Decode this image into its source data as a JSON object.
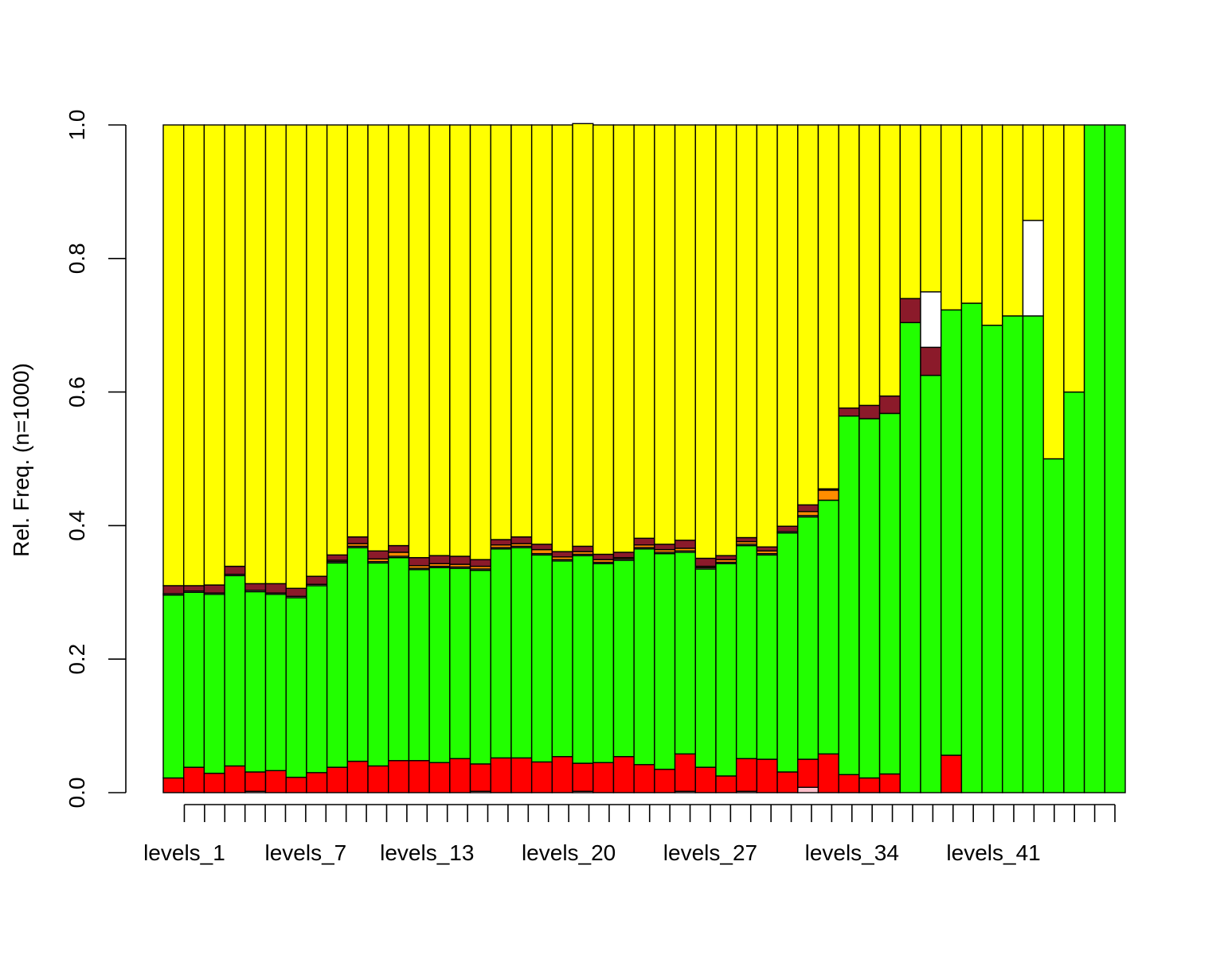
{
  "chart_data": {
    "type": "bar",
    "stacked": true,
    "title": "",
    "xlabel": "",
    "ylabel": "Rel. Freq. (n=1000)",
    "ylim": [
      0,
      1
    ],
    "yticks": [
      "0.0",
      "0.2",
      "0.4",
      "0.6",
      "0.8",
      "1.0"
    ],
    "xtick_labels_shown": [
      "levels_1",
      "levels_7",
      "levels_13",
      "levels_20",
      "levels_27",
      "levels_34",
      "levels_41"
    ],
    "xtick_label_positions": [
      1,
      7,
      13,
      20,
      27,
      34,
      41
    ],
    "categories": [
      "levels_1",
      "levels_2",
      "levels_3",
      "levels_4",
      "levels_5",
      "levels_6",
      "levels_7",
      "levels_8",
      "levels_9",
      "levels_10",
      "levels_11",
      "levels_12",
      "levels_13",
      "levels_14",
      "levels_15",
      "levels_16",
      "levels_17",
      "levels_18",
      "levels_19",
      "levels_20",
      "levels_21",
      "levels_22",
      "levels_23",
      "levels_24",
      "levels_25",
      "levels_26",
      "levels_27",
      "levels_28",
      "levels_29",
      "levels_30",
      "levels_31",
      "levels_32",
      "levels_33",
      "levels_34",
      "levels_35",
      "levels_36",
      "levels_37",
      "levels_38",
      "levels_39",
      "levels_40",
      "levels_41",
      "levels_42",
      "levels_43",
      "levels_44",
      "levels_45",
      "levels_46",
      "levels_47"
    ],
    "series": [
      {
        "color": "#ffc0cb",
        "values": [
          0,
          0,
          0,
          0,
          0.002,
          0,
          0,
          0,
          0,
          0,
          0,
          0,
          0,
          0,
          0,
          0.002,
          0,
          0,
          0,
          0,
          0.002,
          0,
          0,
          0,
          0,
          0.002,
          0,
          0,
          0.002,
          0,
          0,
          0.008,
          0,
          0,
          0,
          0,
          0,
          0,
          0,
          0,
          0,
          0,
          0,
          0,
          0,
          0,
          0
        ]
      },
      {
        "color": "#ff0000",
        "values": [
          0.022,
          0.038,
          0.029,
          0.04,
          0.029,
          0.033,
          0.023,
          0.03,
          0.038,
          0.047,
          0.04,
          0.048,
          0.048,
          0.045,
          0.051,
          0.041,
          0.052,
          0.052,
          0.046,
          0.054,
          0.042,
          0.045,
          0.054,
          0.042,
          0.035,
          0.056,
          0.038,
          0.025,
          0.049,
          0.05,
          0.031,
          0.042,
          0.058,
          0.027,
          0.022,
          0.028,
          0,
          0,
          0.056,
          0,
          0,
          0,
          0,
          0,
          0,
          0,
          0
        ]
      },
      {
        "color": "#22ff00",
        "values": [
          0.274,
          0.262,
          0.268,
          0.285,
          0.27,
          0.264,
          0.269,
          0.28,
          0.306,
          0.32,
          0.304,
          0.304,
          0.286,
          0.292,
          0.285,
          0.29,
          0.313,
          0.315,
          0.31,
          0.293,
          0.311,
          0.298,
          0.294,
          0.323,
          0.323,
          0.302,
          0.297,
          0.318,
          0.319,
          0.306,
          0.358,
          0.363,
          0.38,
          0.537,
          0.538,
          0.54,
          0.704,
          0.625,
          0.667,
          0.733,
          0.7,
          0.714,
          0.714,
          0.5,
          0.6,
          1,
          1
        ]
      },
      {
        "color": "#f0f0b0",
        "values": [
          0.002,
          0.002,
          0.002,
          0.002,
          0.002,
          0.002,
          0.002,
          0.002,
          0.002,
          0.002,
          0.002,
          0.002,
          0.002,
          0.002,
          0.002,
          0.002,
          0.002,
          0.002,
          0.002,
          0.002,
          0.002,
          0.002,
          0.002,
          0.002,
          0.002,
          0.002,
          0.002,
          0.002,
          0.002,
          0.002,
          0.002,
          0.002,
          0,
          0,
          0,
          0,
          0,
          0,
          0,
          0,
          0,
          0,
          0,
          0,
          0,
          0,
          0
        ]
      },
      {
        "color": "#ff8c00",
        "values": [
          0,
          0,
          0,
          0,
          0,
          0,
          0,
          0,
          0.002,
          0.004,
          0.004,
          0.006,
          0.004,
          0.004,
          0.004,
          0.004,
          0.004,
          0.004,
          0.006,
          0.004,
          0.004,
          0.004,
          0.002,
          0.004,
          0.004,
          0.004,
          0.002,
          0.004,
          0.004,
          0.004,
          0,
          0.006,
          0.015,
          0,
          0,
          0,
          0,
          0,
          0,
          0,
          0,
          0,
          0,
          0,
          0,
          0,
          0
        ]
      },
      {
        "color": "#8b1a2a",
        "values": [
          0.012,
          0.008,
          0.012,
          0.012,
          0.01,
          0.014,
          0.012,
          0.012,
          0.008,
          0.01,
          0.012,
          0.01,
          0.012,
          0.012,
          0.012,
          0.01,
          0.008,
          0.01,
          0.008,
          0.008,
          0.008,
          0.008,
          0.008,
          0.01,
          0.008,
          0.012,
          0.012,
          0.006,
          0.006,
          0.006,
          0.008,
          0.01,
          0.002,
          0.012,
          0.02,
          0.026,
          0.036,
          0.042,
          0,
          0,
          0,
          0,
          0,
          0,
          0,
          0,
          0
        ]
      },
      {
        "color": "#ffffff",
        "values": [
          0,
          0,
          0,
          0,
          0,
          0,
          0,
          0,
          0,
          0,
          0,
          0,
          0,
          0,
          0,
          0,
          0,
          0,
          0,
          0,
          0,
          0,
          0,
          0,
          0,
          0,
          0,
          0,
          0,
          0,
          0,
          0,
          0,
          0,
          0,
          0,
          0,
          0.083,
          0,
          0,
          0,
          0,
          0.143,
          0,
          0,
          0,
          0
        ]
      },
      {
        "color": "#ffff00",
        "values": [
          0.69,
          0.69,
          0.689,
          0.661,
          0.687,
          0.687,
          0.694,
          0.676,
          0.644,
          0.617,
          0.638,
          0.63,
          0.648,
          0.645,
          0.646,
          0.651,
          0.621,
          0.617,
          0.628,
          0.639,
          0.633,
          0.643,
          0.64,
          0.619,
          0.628,
          0.622,
          0.649,
          0.645,
          0.618,
          0.632,
          0.601,
          0.569,
          0.545,
          0.424,
          0.42,
          0.406,
          0.26,
          0.25,
          0.277,
          0.267,
          0.3,
          0.286,
          0.143,
          0.5,
          0.4,
          0,
          0
        ]
      }
    ]
  }
}
